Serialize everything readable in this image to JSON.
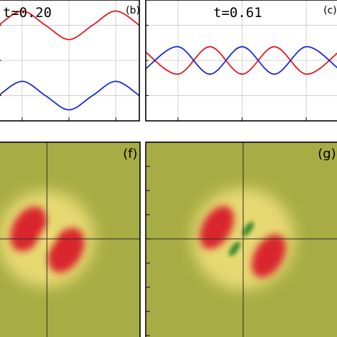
{
  "chart_data": [
    {
      "type": "line",
      "panel_label": "(b)",
      "annotation": "t=0.20",
      "series": [
        {
          "color": "#e8141b",
          "x": [
            0,
            0.167,
            0.333,
            0.5,
            0.667,
            0.833,
            1
          ],
          "y": [
            0.64,
            0.9,
            0.64,
            0.38,
            0.64,
            0.9,
            0.64
          ]
        },
        {
          "color": "#1528d6",
          "x": [
            0,
            0.167,
            0.333,
            0.5,
            0.667,
            0.833,
            1
          ],
          "y": [
            -0.64,
            -0.38,
            -0.64,
            -0.9,
            -0.64,
            -0.38,
            -0.64
          ]
        }
      ],
      "grid": true
    },
    {
      "type": "line",
      "panel_label": "(c)",
      "annotation": "t=0.61",
      "series": [
        {
          "color": "#e8141b",
          "x": [
            0,
            0.167,
            0.333,
            0.5,
            0.667,
            0.833,
            1
          ],
          "y": [
            0.15,
            -0.25,
            0.25,
            -0.25,
            0.25,
            -0.25,
            0.15
          ]
        },
        {
          "color": "#1528d6",
          "x": [
            0,
            0.167,
            0.333,
            0.5,
            0.667,
            0.833,
            1
          ],
          "y": [
            -0.15,
            0.25,
            -0.25,
            0.25,
            -0.25,
            0.25,
            -0.15
          ]
        }
      ],
      "grid": true
    },
    {
      "type": "heatmap",
      "panel_label": "(f)",
      "colors": {
        "background": "#a7ad44",
        "high": "#d9262d",
        "mid": "#f2e07a",
        "low": "#3f8a2e"
      }
    },
    {
      "type": "heatmap",
      "panel_label": "(g)",
      "colors": {
        "background": "#a7ad44",
        "high": "#d9262d",
        "mid": "#f2e07a",
        "low": "#3f8a2e"
      }
    }
  ]
}
